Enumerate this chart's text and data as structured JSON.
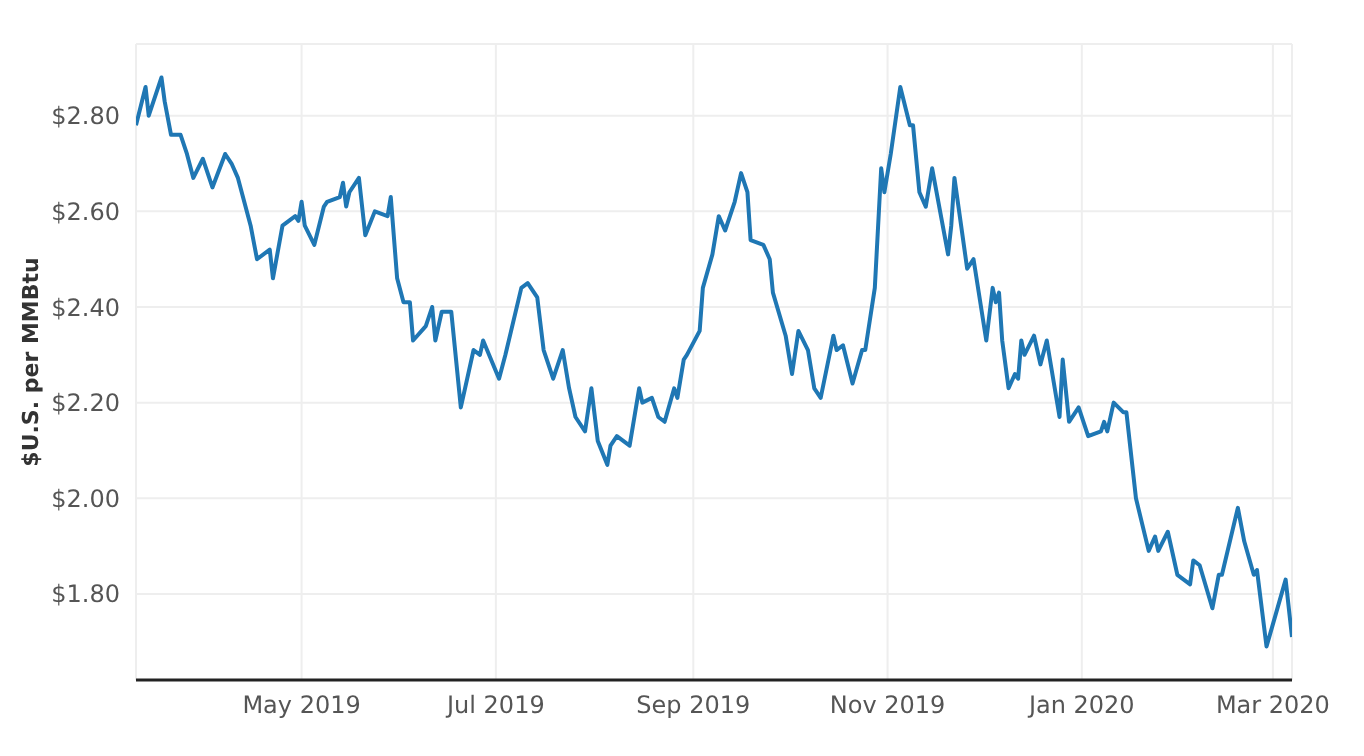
{
  "chart_data": {
    "type": "line",
    "ylabel": "$U.S. per MMBtu",
    "xlim": [
      "2019-03-10",
      "2020-03-07"
    ],
    "xticks": [
      {
        "value": "2019-05-01",
        "label": "May 2019"
      },
      {
        "value": "2019-07-01",
        "label": "Jul 2019"
      },
      {
        "value": "2019-09-01",
        "label": "Sep 2019"
      },
      {
        "value": "2019-11-01",
        "label": "Nov 2019"
      },
      {
        "value": "2020-01-01",
        "label": "Jan 2020"
      },
      {
        "value": "2020-03-01",
        "label": "Mar 2020"
      }
    ],
    "ylim": [
      1.62,
      2.95
    ],
    "yticks": [
      {
        "value": 1.8,
        "label": "$1.80"
      },
      {
        "value": 2.0,
        "label": "$2.00"
      },
      {
        "value": 2.2,
        "label": "$2.20"
      },
      {
        "value": 2.4,
        "label": "$2.40"
      },
      {
        "value": 2.6,
        "label": "$2.60"
      },
      {
        "value": 2.8,
        "label": "$2.80"
      }
    ],
    "grid": true,
    "marker": "none",
    "line_style": "solid",
    "x": [
      "2019-03-10",
      "2019-03-13",
      "2019-03-14",
      "2019-03-18",
      "2019-03-19",
      "2019-03-21",
      "2019-03-24",
      "2019-03-26",
      "2019-03-28",
      "2019-03-31",
      "2019-04-03",
      "2019-04-07",
      "2019-04-09",
      "2019-04-11",
      "2019-04-15",
      "2019-04-17",
      "2019-04-21",
      "2019-04-22",
      "2019-04-25",
      "2019-04-29",
      "2019-04-30",
      "2019-05-01",
      "2019-05-02",
      "2019-05-05",
      "2019-05-08",
      "2019-05-09",
      "2019-05-13",
      "2019-05-14",
      "2019-05-15",
      "2019-05-16",
      "2019-05-19",
      "2019-05-21",
      "2019-05-24",
      "2019-05-28",
      "2019-05-29",
      "2019-05-31",
      "2019-06-02",
      "2019-06-04",
      "2019-06-05",
      "2019-06-09",
      "2019-06-11",
      "2019-06-12",
      "2019-06-14",
      "2019-06-17",
      "2019-06-20",
      "2019-06-24",
      "2019-06-26",
      "2019-06-27",
      "2019-07-02",
      "2019-07-04",
      "2019-07-09",
      "2019-07-11",
      "2019-07-14",
      "2019-07-16",
      "2019-07-19",
      "2019-07-22",
      "2019-07-24",
      "2019-07-26",
      "2019-07-29",
      "2019-07-31",
      "2019-08-02",
      "2019-08-05",
      "2019-08-06",
      "2019-08-08",
      "2019-08-12",
      "2019-08-13",
      "2019-08-15",
      "2019-08-16",
      "2019-08-19",
      "2019-08-21",
      "2019-08-23",
      "2019-08-26",
      "2019-08-27",
      "2019-08-29",
      "2019-08-30",
      "2019-09-03",
      "2019-09-04",
      "2019-09-07",
      "2019-09-09",
      "2019-09-11",
      "2019-09-14",
      "2019-09-16",
      "2019-09-18",
      "2019-09-19",
      "2019-09-23",
      "2019-09-25",
      "2019-09-26",
      "2019-09-30",
      "2019-10-02",
      "2019-10-04",
      "2019-10-07",
      "2019-10-09",
      "2019-10-11",
      "2019-10-15",
      "2019-10-16",
      "2019-10-18",
      "2019-10-21",
      "2019-10-24",
      "2019-10-25",
      "2019-10-28",
      "2019-10-30",
      "2019-10-31",
      "2019-11-02",
      "2019-11-05",
      "2019-11-08",
      "2019-11-09",
      "2019-11-11",
      "2019-11-13",
      "2019-11-15",
      "2019-11-20",
      "2019-11-21",
      "2019-11-22",
      "2019-11-26",
      "2019-11-28",
      "2019-12-02",
      "2019-12-04",
      "2019-12-05",
      "2019-12-06",
      "2019-12-07",
      "2019-12-09",
      "2019-12-11",
      "2019-12-12",
      "2019-12-13",
      "2019-12-14",
      "2019-12-17",
      "2019-12-19",
      "2019-12-21",
      "2019-12-25",
      "2019-12-26",
      "2019-12-28",
      "2019-12-31",
      "2020-01-03",
      "2020-01-07",
      "2020-01-08",
      "2020-01-09",
      "2020-01-11",
      "2020-01-14",
      "2020-01-15",
      "2020-01-18",
      "2020-01-22",
      "2020-01-24",
      "2020-01-25",
      "2020-01-28",
      "2020-01-31",
      "2020-02-04",
      "2020-02-05",
      "2020-02-07",
      "2020-02-11",
      "2020-02-13",
      "2020-02-14",
      "2020-02-19",
      "2020-02-21",
      "2020-02-24",
      "2020-02-25",
      "2020-02-28",
      "2020-03-05",
      "2020-03-07"
    ],
    "series": [
      {
        "color": "#1f77b4",
        "values": [
          2.78,
          2.86,
          2.8,
          2.88,
          2.83,
          2.76,
          2.76,
          2.72,
          2.67,
          2.71,
          2.65,
          2.72,
          2.7,
          2.67,
          2.57,
          2.5,
          2.52,
          2.46,
          2.57,
          2.59,
          2.58,
          2.62,
          2.57,
          2.53,
          2.61,
          2.62,
          2.63,
          2.66,
          2.61,
          2.64,
          2.67,
          2.55,
          2.6,
          2.59,
          2.63,
          2.46,
          2.41,
          2.41,
          2.33,
          2.36,
          2.4,
          2.33,
          2.39,
          2.39,
          2.19,
          2.31,
          2.3,
          2.33,
          2.25,
          2.3,
          2.44,
          2.45,
          2.42,
          2.31,
          2.25,
          2.31,
          2.23,
          2.17,
          2.14,
          2.23,
          2.12,
          2.07,
          2.11,
          2.13,
          2.11,
          2.15,
          2.23,
          2.2,
          2.21,
          2.17,
          2.16,
          2.23,
          2.21,
          2.29,
          2.3,
          2.35,
          2.44,
          2.51,
          2.59,
          2.56,
          2.62,
          2.68,
          2.64,
          2.54,
          2.53,
          2.5,
          2.43,
          2.34,
          2.26,
          2.35,
          2.31,
          2.23,
          2.21,
          2.34,
          2.31,
          2.32,
          2.24,
          2.31,
          2.31,
          2.44,
          2.69,
          2.64,
          2.72,
          2.86,
          2.78,
          2.78,
          2.64,
          2.61,
          2.69,
          2.51,
          2.57,
          2.67,
          2.48,
          2.5,
          2.33,
          2.44,
          2.41,
          2.43,
          2.33,
          2.23,
          2.26,
          2.25,
          2.33,
          2.3,
          2.34,
          2.28,
          2.33,
          2.17,
          2.29,
          2.16,
          2.19,
          2.13,
          2.14,
          2.16,
          2.14,
          2.2,
          2.18,
          2.18,
          2.0,
          1.89,
          1.92,
          1.89,
          1.93,
          1.84,
          1.82,
          1.87,
          1.86,
          1.77,
          1.84,
          1.84,
          1.98,
          1.91,
          1.84,
          1.85,
          1.69,
          1.83,
          1.71
        ]
      }
    ]
  }
}
